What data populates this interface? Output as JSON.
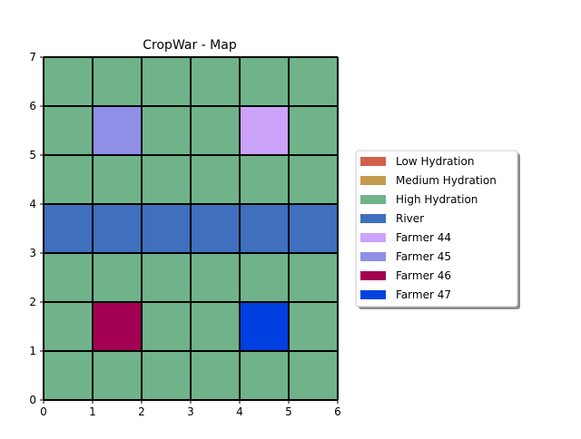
{
  "chart_data": {
    "type": "heatmap",
    "title": "CropWar - Map",
    "xlabel": "",
    "ylabel": "",
    "xlim": [
      0,
      6
    ],
    "ylim": [
      0,
      7
    ],
    "x_ticks": [
      "0",
      "1",
      "2",
      "3",
      "4",
      "5",
      "6"
    ],
    "y_ticks": [
      "0",
      "1",
      "2",
      "3",
      "4",
      "5",
      "6",
      "7"
    ],
    "grid": true,
    "legend_position": "right",
    "categories": [
      {
        "key": "low",
        "name": "Low Hydration",
        "color": "#d0624d"
      },
      {
        "key": "medium",
        "name": "Medium Hydration",
        "color": "#c39a50"
      },
      {
        "key": "high",
        "name": "High Hydration",
        "color": "#70b38a"
      },
      {
        "key": "river",
        "name": "River",
        "color": "#3f6fbd"
      },
      {
        "key": "f44",
        "name": "Farmer 44",
        "color": "#cba3fb"
      },
      {
        "key": "f45",
        "name": "Farmer 45",
        "color": "#8f8fe8"
      },
      {
        "key": "f46",
        "name": "Farmer 46",
        "color": "#a30053"
      },
      {
        "key": "f47",
        "name": "Farmer 47",
        "color": "#0140e0"
      }
    ],
    "grid_cells_top_to_bottom": [
      [
        "high",
        "high",
        "high",
        "high",
        "high",
        "high"
      ],
      [
        "high",
        "f45",
        "high",
        "high",
        "f44",
        "high"
      ],
      [
        "high",
        "high",
        "high",
        "high",
        "high",
        "high"
      ],
      [
        "river",
        "river",
        "river",
        "river",
        "river",
        "river"
      ],
      [
        "high",
        "high",
        "high",
        "high",
        "high",
        "high"
      ],
      [
        "high",
        "f46",
        "high",
        "high",
        "f47",
        "high"
      ],
      [
        "high",
        "high",
        "high",
        "high",
        "high",
        "high"
      ]
    ]
  }
}
